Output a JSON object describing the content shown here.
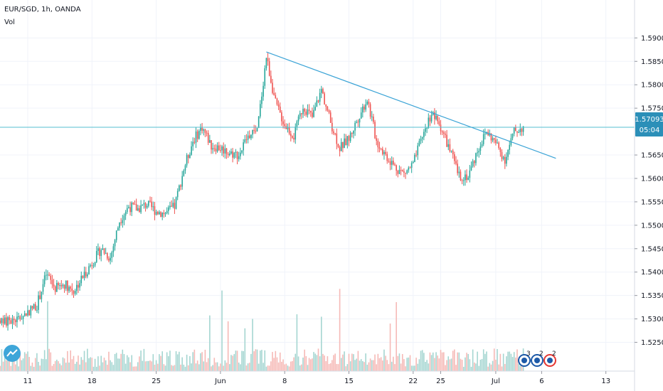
{
  "header": {
    "symbol": "EUR/SGD, 1h, OANDA",
    "volume_label": "Vol"
  },
  "colors": {
    "up": "#26a69a",
    "down": "#ef5350",
    "vol_up": "#a5d6d1",
    "vol_down": "#f6b9b6",
    "trendline": "#3aa3d6",
    "price_line": "#54bfd0",
    "price_badge": "#2b8fb8",
    "grid": "#f0f3fa",
    "axis_text": "#131722",
    "logo": "#3ea6d9",
    "event_red": "#e53935",
    "event_blue": "#1e5aa8"
  },
  "events": [
    {
      "name": "event-badge-1",
      "count": "3"
    },
    {
      "name": "event-badge-2",
      "count": "2"
    },
    {
      "name": "event-badge-3",
      "count": "2"
    }
  ],
  "chart_data": {
    "type": "candlestick",
    "title": "EUR/SGD, 1h, OANDA",
    "x_ticks": [
      "11",
      "18",
      "25",
      "Jun",
      "8",
      "15",
      "22",
      "25",
      "Jul",
      "6",
      "13"
    ],
    "y_ticks": [
      "1.59000",
      "1.58500",
      "1.58000",
      "1.57500",
      "1.56500",
      "1.56000",
      "1.55500",
      "1.55000",
      "1.54500",
      "1.54000",
      "1.53500",
      "1.53000",
      "1.52500"
    ],
    "ylim": [
      1.5225,
      1.594
    ],
    "last_price": "1.57093",
    "countdown": "05:04",
    "grid": true,
    "trendline": {
      "start": {
        "date": "Jun 6",
        "price": 1.587
      },
      "end": {
        "date": "Jul 6",
        "price": 1.5643
      }
    },
    "path_anchors": [
      {
        "date": "May 7",
        "price": 1.5362
      },
      {
        "date": "May 8",
        "price": 1.529
      },
      {
        "date": "May 10",
        "price": 1.53
      },
      {
        "date": "May 12",
        "price": 1.533
      },
      {
        "date": "May 13",
        "price": 1.5395
      },
      {
        "date": "May 14",
        "price": 1.5365
      },
      {
        "date": "May 15",
        "price": 1.5375
      },
      {
        "date": "May 16",
        "price": 1.536
      },
      {
        "date": "May 17",
        "price": 1.539
      },
      {
        "date": "May 18",
        "price": 1.542
      },
      {
        "date": "May 19",
        "price": 1.545
      },
      {
        "date": "May 20",
        "price": 1.543
      },
      {
        "date": "May 21",
        "price": 1.551
      },
      {
        "date": "May 22",
        "price": 1.554
      },
      {
        "date": "May 23",
        "price": 1.5535
      },
      {
        "date": "May 24",
        "price": 1.5545
      },
      {
        "date": "May 25",
        "price": 1.553
      },
      {
        "date": "May 26",
        "price": 1.5525
      },
      {
        "date": "May 27",
        "price": 1.554
      },
      {
        "date": "May 28",
        "price": 1.562
      },
      {
        "date": "May 29",
        "price": 1.568
      },
      {
        "date": "May 30",
        "price": 1.571
      },
      {
        "date": "May 31",
        "price": 1.567
      },
      {
        "date": "Jun 1",
        "price": 1.5665
      },
      {
        "date": "Jun 2",
        "price": 1.5655
      },
      {
        "date": "Jun 3",
        "price": 1.565
      },
      {
        "date": "Jun 4",
        "price": 1.569
      },
      {
        "date": "Jun 5",
        "price": 1.57
      },
      {
        "date": "Jun 6",
        "price": 1.586
      },
      {
        "date": "Jun 7",
        "price": 1.576
      },
      {
        "date": "Jun 8",
        "price": 1.5715
      },
      {
        "date": "Jun 9",
        "price": 1.569
      },
      {
        "date": "Jun 10",
        "price": 1.5755
      },
      {
        "date": "Jun 11",
        "price": 1.573
      },
      {
        "date": "Jun 12",
        "price": 1.579
      },
      {
        "date": "Jun 13",
        "price": 1.572
      },
      {
        "date": "Jun 14",
        "price": 1.5665
      },
      {
        "date": "Jun 15",
        "price": 1.5685
      },
      {
        "date": "Jun 16",
        "price": 1.573
      },
      {
        "date": "Jun 17",
        "price": 1.577
      },
      {
        "date": "Jun 18",
        "price": 1.568
      },
      {
        "date": "Jun 19",
        "price": 1.565
      },
      {
        "date": "Jun 20",
        "price": 1.5625
      },
      {
        "date": "Jun 21",
        "price": 1.561
      },
      {
        "date": "Jun 22",
        "price": 1.563
      },
      {
        "date": "Jun 23",
        "price": 1.569
      },
      {
        "date": "Jun 24",
        "price": 1.574
      },
      {
        "date": "Jun 25",
        "price": 1.571
      },
      {
        "date": "Jun 26",
        "price": 1.566
      },
      {
        "date": "Jun 27",
        "price": 1.5605
      },
      {
        "date": "Jun 28",
        "price": 1.5605
      },
      {
        "date": "Jun 29",
        "price": 1.566
      },
      {
        "date": "Jun 30",
        "price": 1.57
      },
      {
        "date": "Jul 1",
        "price": 1.5675
      },
      {
        "date": "Jul 2",
        "price": 1.564
      },
      {
        "date": "Jul 3",
        "price": 1.57
      },
      {
        "date": "Jul 4",
        "price": 1.5709
      }
    ]
  }
}
